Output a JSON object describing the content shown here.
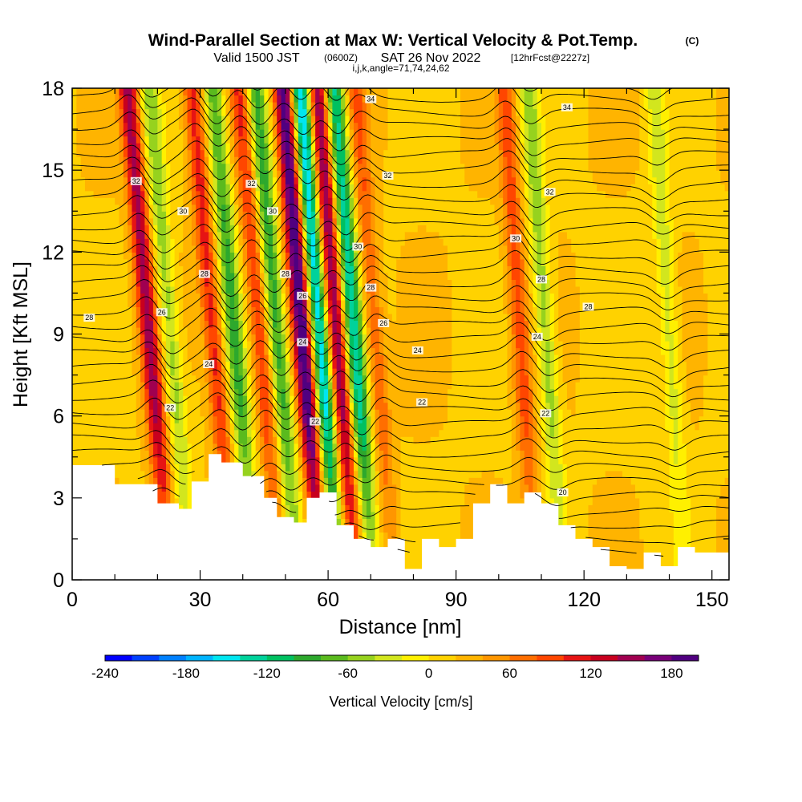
{
  "figure": {
    "title_main": "Wind-Parallel Section at Max W: Vertical Velocity & Pot.Temp.",
    "title_copyright": "(C)",
    "valid_prefix": "Valid 1500 JST",
    "valid_utc": "(0600Z)",
    "valid_date": "SAT 26 Nov 2022",
    "valid_forecast": "[12hrFcst@2227z]",
    "section_params": "i,j,k,angle=71,74,24,62"
  },
  "colors": {
    "terrain": "#ffffff",
    "contour": "#000000"
  },
  "chart_data": {
    "type": "heatmap",
    "xlabel": "Distance [nm]",
    "ylabel": "Height [Kft MSL]",
    "xlim": [
      0,
      154
    ],
    "ylim": [
      0,
      18
    ],
    "xticks": [
      0,
      30,
      60,
      90,
      120,
      150
    ],
    "yticks": [
      0,
      3,
      6,
      9,
      12,
      15,
      18
    ],
    "field": "Vertical Velocity",
    "colorbar": {
      "label": "Vertical Velocity [cm/s]",
      "min": -240,
      "max": 200,
      "step": 20,
      "tick_values": [
        -240,
        -180,
        -120,
        -60,
        0,
        60,
        120,
        180
      ],
      "tick_labels": [
        "-240",
        "-180",
        "-120",
        "-60",
        "0",
        "60",
        "120",
        "180"
      ],
      "colors": [
        "#0000ff",
        "#0040ff",
        "#0080ff",
        "#00b4ff",
        "#00e6f0",
        "#00d29b",
        "#00c060",
        "#2da82d",
        "#5aba1e",
        "#96d21e",
        "#d2e61e",
        "#fff000",
        "#ffd200",
        "#ffb400",
        "#ff9600",
        "#ff6e00",
        "#ff4600",
        "#e61414",
        "#c8001e",
        "#a00050",
        "#780078",
        "#500080"
      ]
    },
    "updraft_bands": [
      {
        "x": 18,
        "peak": 130,
        "tilt": 0.55
      },
      {
        "x": 33,
        "peak": 90,
        "tilt": 0.55
      },
      {
        "x": 44,
        "peak": 80,
        "tilt": 0.55
      },
      {
        "x": 54,
        "peak": 190,
        "tilt": 0.5
      },
      {
        "x": 62,
        "peak": 150,
        "tilt": 0.5
      },
      {
        "x": 71,
        "peak": 60,
        "tilt": 0.5
      },
      {
        "x": 105,
        "peak": 70,
        "tilt": 0.4
      }
    ],
    "downdraft_bands": [
      {
        "x": 23,
        "peak": -70,
        "tilt": 0.55
      },
      {
        "x": 38,
        "peak": -100,
        "tilt": 0.55
      },
      {
        "x": 48,
        "peak": -110,
        "tilt": 0.55
      },
      {
        "x": 58,
        "peak": -180,
        "tilt": 0.5
      },
      {
        "x": 66,
        "peak": -150,
        "tilt": 0.5
      },
      {
        "x": 111,
        "peak": -70,
        "tilt": 0.45
      },
      {
        "x": 140,
        "peak": -50,
        "tilt": 0.4
      }
    ],
    "terrain_kft": {
      "x": [
        0,
        5,
        10,
        15,
        20,
        25,
        28,
        32,
        35,
        40,
        45,
        48,
        52,
        55,
        58,
        62,
        66,
        70,
        74,
        78,
        82,
        86,
        90,
        94,
        98,
        102,
        106,
        110,
        114,
        118,
        122,
        126,
        130,
        134,
        138,
        142,
        146,
        150,
        154
      ],
      "h": [
        4.2,
        4.2,
        3.5,
        3.5,
        2.8,
        2.6,
        3.6,
        4.6,
        4.3,
        3.8,
        3.0,
        2.3,
        2.1,
        3.0,
        3.2,
        2.0,
        1.5,
        1.2,
        1.5,
        0.4,
        1.5,
        1.2,
        1.5,
        2.8,
        3.5,
        2.8,
        3.2,
        2.8,
        2.0,
        1.5,
        1.2,
        0.5,
        0.4,
        1.0,
        0.5,
        1.2,
        1.0,
        1.0,
        1.0
      ]
    },
    "theta_contours": {
      "interval_c": 1,
      "labels": [
        {
          "text": "34",
          "x": 70,
          "y": 17.6
        },
        {
          "text": "34",
          "x": 116,
          "y": 17.3
        },
        {
          "text": "32",
          "x": 15,
          "y": 14.6
        },
        {
          "text": "32",
          "x": 42,
          "y": 14.5
        },
        {
          "text": "32",
          "x": 74,
          "y": 14.8
        },
        {
          "text": "32",
          "x": 112,
          "y": 14.2
        },
        {
          "text": "30",
          "x": 26,
          "y": 13.5
        },
        {
          "text": "30",
          "x": 47,
          "y": 13.5
        },
        {
          "text": "30",
          "x": 104,
          "y": 12.5
        },
        {
          "text": "30",
          "x": 67,
          "y": 12.2
        },
        {
          "text": "28",
          "x": 31,
          "y": 11.2
        },
        {
          "text": "28",
          "x": 50,
          "y": 11.2
        },
        {
          "text": "28",
          "x": 70,
          "y": 10.7
        },
        {
          "text": "28",
          "x": 110,
          "y": 11.0
        },
        {
          "text": "28",
          "x": 121,
          "y": 10.0
        },
        {
          "text": "28",
          "x": 4,
          "y": 9.6
        },
        {
          "text": "26",
          "x": 54,
          "y": 10.4
        },
        {
          "text": "26",
          "x": 73,
          "y": 9.4
        },
        {
          "text": "26",
          "x": 21,
          "y": 9.8
        },
        {
          "text": "24",
          "x": 54,
          "y": 8.7
        },
        {
          "text": "24",
          "x": 32,
          "y": 7.9
        },
        {
          "text": "24",
          "x": 81,
          "y": 8.4
        },
        {
          "text": "24",
          "x": 109,
          "y": 8.9
        },
        {
          "text": "22",
          "x": 23,
          "y": 6.3
        },
        {
          "text": "22",
          "x": 82,
          "y": 6.5
        },
        {
          "text": "22",
          "x": 111,
          "y": 6.1
        },
        {
          "text": "22",
          "x": 57,
          "y": 5.8
        },
        {
          "text": "20",
          "x": 115,
          "y": 3.2
        }
      ]
    }
  }
}
